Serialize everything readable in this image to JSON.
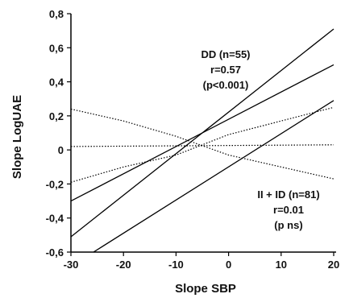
{
  "chart_data": {
    "type": "line",
    "title": "",
    "xlabel": "Slope SBP",
    "ylabel": "Slope LogUAE",
    "xlim": [
      -30,
      20
    ],
    "ylim": [
      -0.6,
      0.8
    ],
    "x_ticks": [
      "-30",
      "-20",
      "-10",
      "0",
      "10",
      "20"
    ],
    "y_ticks": [
      "0,8",
      "0,6",
      "0,4",
      "0,2",
      "0",
      "-0,2",
      "-0,4",
      "-0,6"
    ],
    "x_tick_values": [
      -30,
      -20,
      -10,
      0,
      10,
      20
    ],
    "y_tick_values": [
      0.8,
      0.6,
      0.4,
      0.2,
      0,
      -0.2,
      -0.4,
      -0.6
    ],
    "grid": false,
    "annotations": [
      {
        "lines": [
          "DD (n=55)",
          "r=0.57",
          "(p<0.001)"
        ]
      },
      {
        "lines": [
          "II + ID (n=81)",
          "r=0.01",
          "(p ns)"
        ]
      }
    ],
    "series": [
      {
        "group": "DD",
        "role": "regression",
        "style": "solid",
        "x": [
          -30,
          20
        ],
        "y": [
          -0.3,
          0.5
        ]
      },
      {
        "group": "DD",
        "role": "upper-ci",
        "style": "solid",
        "x": [
          -30,
          20
        ],
        "y": [
          -0.51,
          0.71
        ]
      },
      {
        "group": "DD",
        "role": "lower-ci",
        "style": "solid",
        "x": [
          -25.7,
          20
        ],
        "y": [
          -0.6,
          0.29
        ]
      },
      {
        "group": "II + ID",
        "role": "regression",
        "style": "dotted",
        "x": [
          -30,
          20
        ],
        "y": [
          0.02,
          0.03
        ]
      },
      {
        "group": "II + ID",
        "role": "ci-band",
        "style": "dotted",
        "x": [
          -30,
          -20,
          -10,
          0,
          10,
          20
        ],
        "y": [
          -0.19,
          -0.1,
          -0.03,
          0.09,
          0.17,
          0.25
        ]
      },
      {
        "group": "II + ID",
        "role": "ci-band",
        "style": "dotted",
        "x": [
          -30,
          -20,
          -10,
          0,
          10,
          20
        ],
        "y": [
          0.24,
          0.17,
          0.08,
          -0.03,
          -0.1,
          -0.17
        ]
      }
    ]
  }
}
